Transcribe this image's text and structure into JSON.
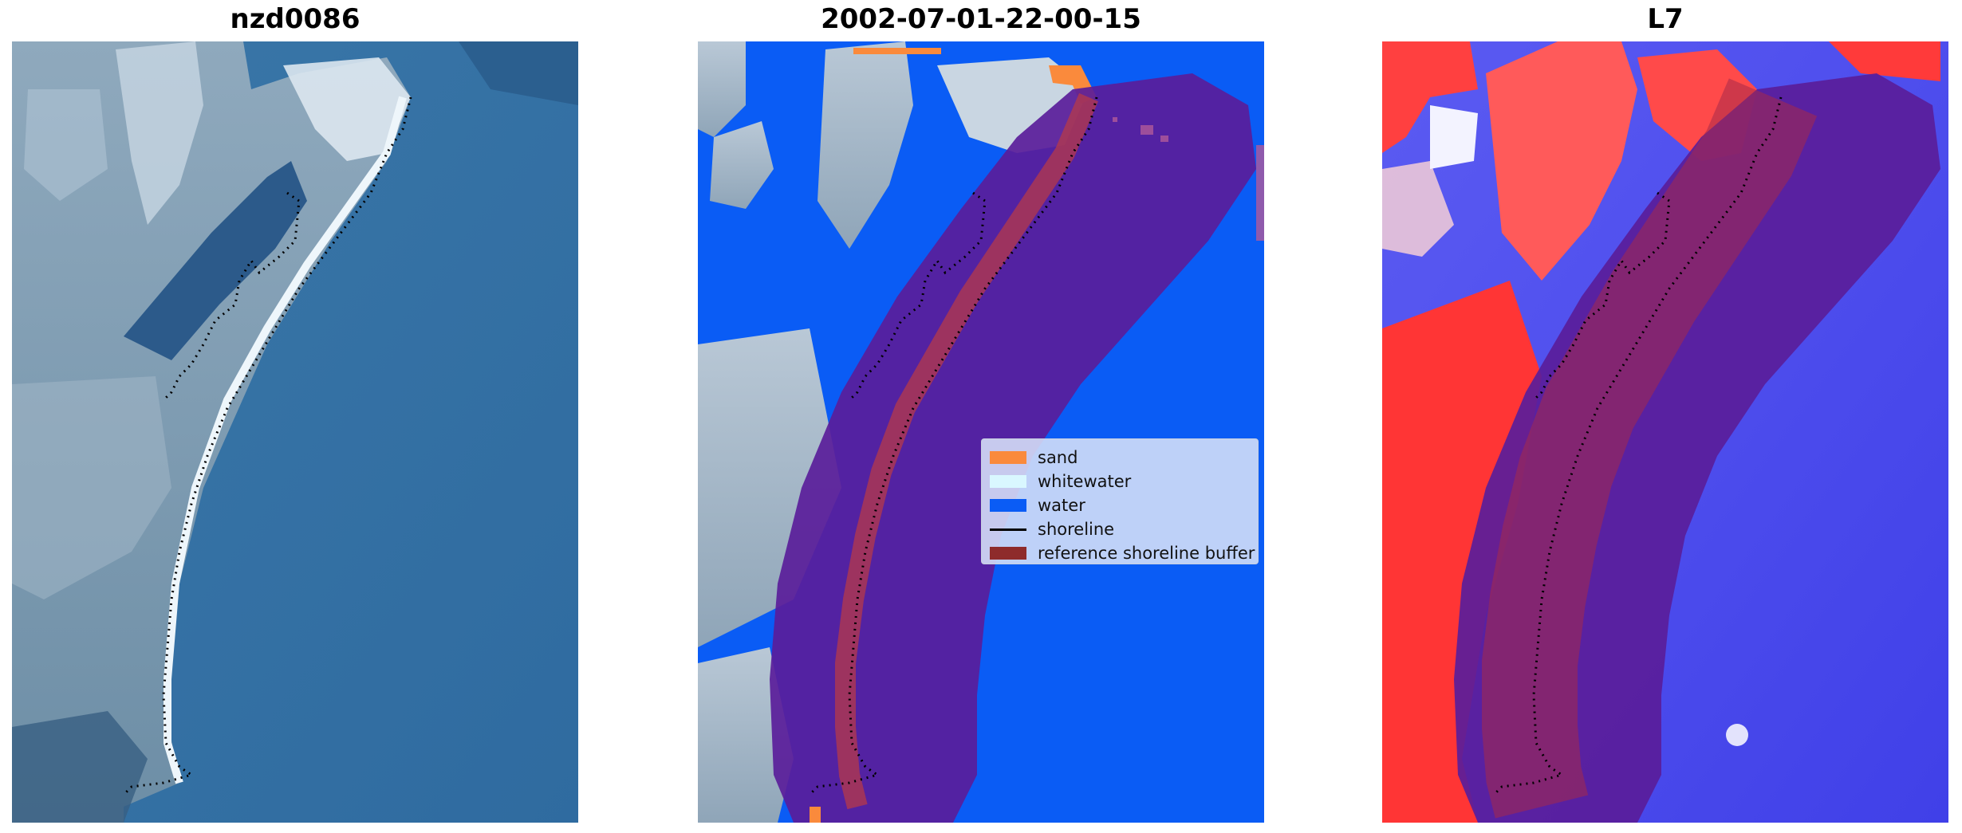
{
  "panels": [
    {
      "title": "nzd0086"
    },
    {
      "title": "2002-07-01-22-00-15"
    },
    {
      "title": "L7"
    }
  ],
  "legend": {
    "items": [
      {
        "label": "sand",
        "color": "#fa8a3c"
      },
      {
        "label": "whitewater",
        "color": "#d9f7ff"
      },
      {
        "label": "water",
        "color": "#0a5cf5"
      },
      {
        "label": "shoreline",
        "color": "#000000"
      },
      {
        "label": "reference shoreline buffer",
        "color": "#8e2b2b"
      }
    ]
  },
  "colors": {
    "buffer_fill": "#5a1d9a",
    "buffer_edge": "#9b2f3d",
    "index_high": "#ff2a2a",
    "index_low": "#3a3af5"
  }
}
